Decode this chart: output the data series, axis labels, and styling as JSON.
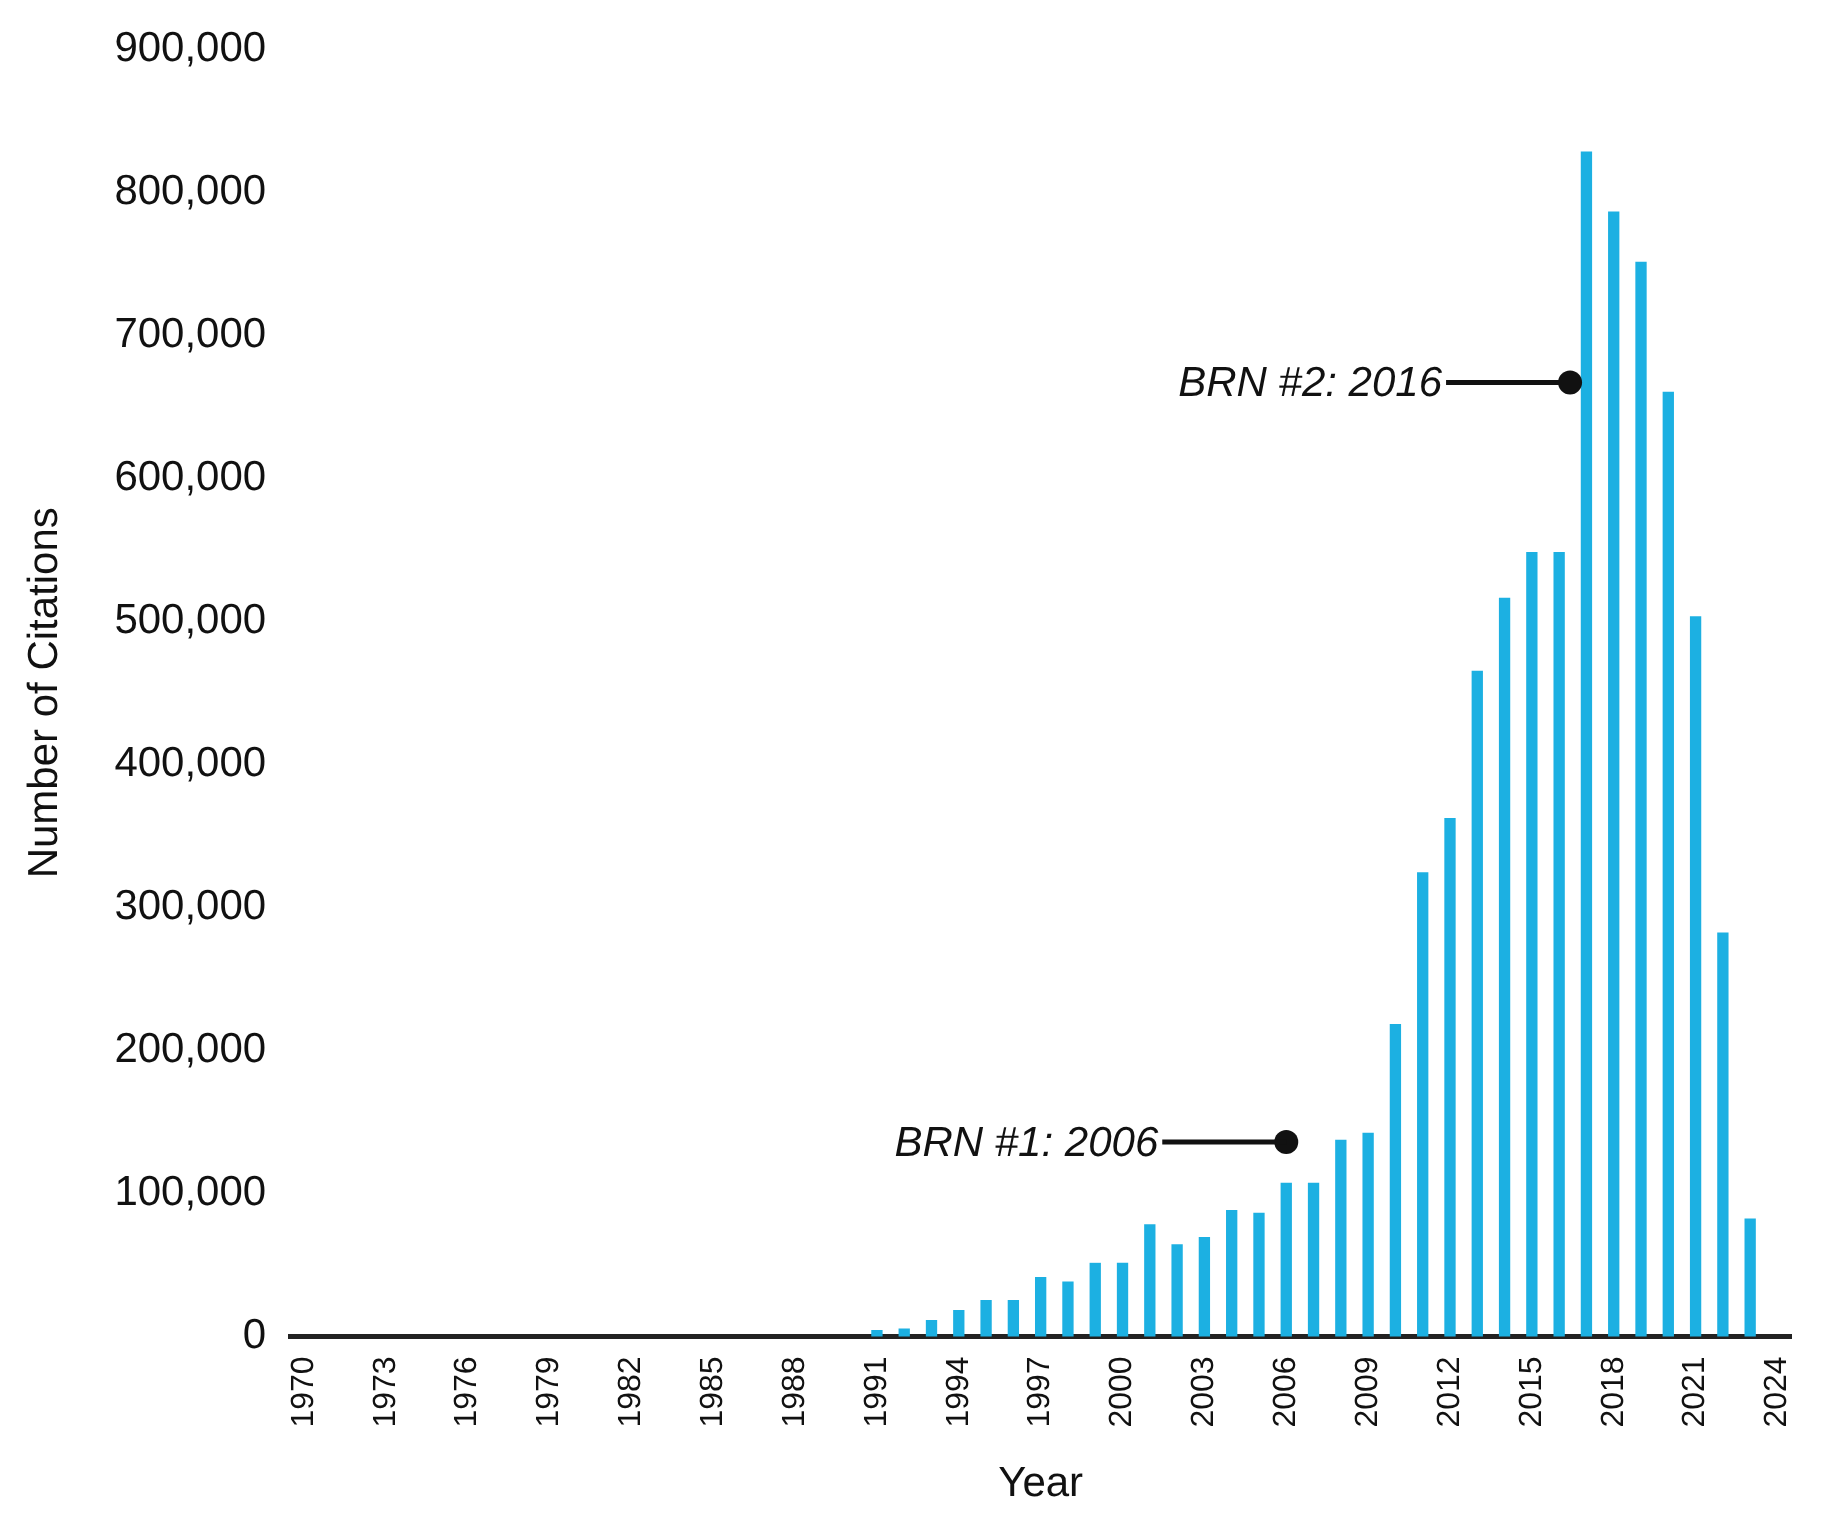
{
  "chart_data": {
    "type": "bar",
    "xlabel": "Year",
    "ylabel": "Number of Citations",
    "x": [
      1991,
      1992,
      1993,
      1994,
      1995,
      1996,
      1997,
      1998,
      1999,
      2000,
      2001,
      2002,
      2003,
      2004,
      2005,
      2006,
      2007,
      2008,
      2009,
      2010,
      2011,
      2012,
      2013,
      2014,
      2015,
      2016,
      2017,
      2018,
      2019,
      2020,
      2021,
      2022,
      2023
    ],
    "values": [
      4000,
      5000,
      11000,
      18000,
      25000,
      25000,
      41000,
      38000,
      51000,
      51000,
      78000,
      64000,
      69000,
      88000,
      86000,
      107000,
      107000,
      137000,
      142000,
      218000,
      324000,
      362000,
      465000,
      516000,
      548000,
      548000,
      828000,
      786000,
      751000,
      660000,
      503000,
      282000,
      82000
    ],
    "color": "#1cb0e2",
    "xlim": [
      1969.5,
      2024.5
    ],
    "xticks": [
      1970,
      1973,
      1976,
      1979,
      1982,
      1985,
      1988,
      1991,
      1994,
      1997,
      2000,
      2003,
      2006,
      2009,
      2012,
      2015,
      2018,
      2021,
      2024
    ],
    "ylim": [
      0,
      900000
    ],
    "yticks": [
      {
        "value": 0,
        "label": "0"
      },
      {
        "value": 100000,
        "label": "100,000"
      },
      {
        "value": 200000,
        "label": "200,000"
      },
      {
        "value": 300000,
        "label": "300,000"
      },
      {
        "value": 400000,
        "label": "400,000"
      },
      {
        "value": 500000,
        "label": "500,000"
      },
      {
        "value": 600000,
        "label": "600,000"
      },
      {
        "value": 700000,
        "label": "700,000"
      },
      {
        "value": 800000,
        "label": "800,000"
      },
      {
        "value": 900000,
        "label": "900,000"
      }
    ],
    "annotations": [
      {
        "text": "BRN #1: 2006",
        "x": 2006,
        "y": 136000
      },
      {
        "text": "BRN #2: 2016",
        "x": 2016.4,
        "y": 667000
      }
    ],
    "grid": false,
    "legend": false
  }
}
